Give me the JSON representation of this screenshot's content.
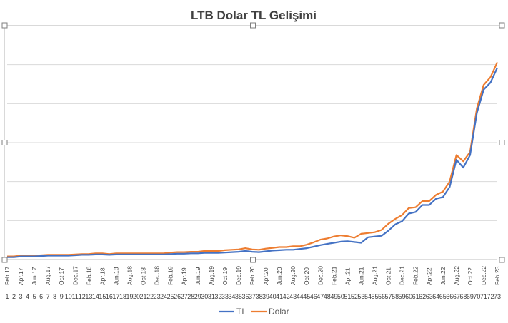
{
  "chart_data": {
    "type": "line",
    "title": "LTB Dolar TL Gelişimi",
    "xlabel": "",
    "ylabel": "",
    "grid": true,
    "legend": "bottom",
    "x_month_labels": [
      "Feb.17",
      "Apr.17",
      "Jun.17",
      "Aug.17",
      "Oct.17",
      "Dec.17",
      "Feb.18",
      "Apr.18",
      "Jun.18",
      "Aug.18",
      "Oct.18",
      "Dec.18",
      "Feb.19",
      "Apr.19",
      "Jun.19",
      "Aug.19",
      "Oct.19",
      "Dec.19",
      "Feb.20",
      "Apr.20",
      "Jun.20",
      "Aug.20",
      "Oct.20",
      "Dec.20",
      "Feb.21",
      "Apr.21",
      "Jun.21",
      "Aug.21",
      "Oct.21",
      "Dec.21",
      "Feb.22",
      "Apr.22",
      "Jun.22",
      "Aug.22",
      "Oct.22",
      "Dec.22",
      "Feb.23"
    ],
    "x": [
      1,
      2,
      3,
      4,
      5,
      6,
      7,
      8,
      9,
      10,
      11,
      12,
      13,
      14,
      15,
      16,
      17,
      18,
      19,
      20,
      21,
      22,
      23,
      24,
      25,
      26,
      27,
      28,
      29,
      30,
      31,
      32,
      33,
      34,
      35,
      36,
      37,
      38,
      39,
      40,
      41,
      42,
      43,
      44,
      45,
      46,
      47,
      48,
      49,
      50,
      51,
      52,
      53,
      54,
      55,
      56,
      57,
      58,
      59,
      60,
      61,
      62,
      63,
      64,
      65,
      66,
      67,
      68,
      69,
      70,
      71,
      72,
      73
    ],
    "series": [
      {
        "name": "TL",
        "color": "#4472C4",
        "values": [
          0.3,
          0.3,
          0.4,
          0.4,
          0.4,
          0.45,
          0.5,
          0.5,
          0.5,
          0.5,
          0.55,
          0.6,
          0.6,
          0.65,
          0.65,
          0.6,
          0.65,
          0.65,
          0.65,
          0.65,
          0.65,
          0.65,
          0.65,
          0.65,
          0.7,
          0.75,
          0.75,
          0.8,
          0.8,
          0.85,
          0.85,
          0.85,
          0.9,
          0.95,
          1.0,
          1.1,
          1.0,
          0.95,
          1.05,
          1.15,
          1.2,
          1.25,
          1.25,
          1.35,
          1.45,
          1.65,
          1.85,
          2.0,
          2.15,
          2.3,
          2.35,
          2.25,
          2.15,
          2.85,
          2.95,
          3.05,
          3.7,
          4.5,
          4.9,
          5.9,
          6.1,
          7.0,
          7.0,
          7.8,
          8.0,
          9.3,
          12.8,
          11.8,
          13.4,
          18.8,
          21.8,
          22.7,
          24.6
        ]
      },
      {
        "name": "Dolar",
        "color": "#ED7D31",
        "values": [
          0.4,
          0.4,
          0.5,
          0.5,
          0.5,
          0.55,
          0.6,
          0.6,
          0.6,
          0.6,
          0.65,
          0.7,
          0.7,
          0.8,
          0.8,
          0.7,
          0.8,
          0.8,
          0.8,
          0.8,
          0.8,
          0.8,
          0.8,
          0.8,
          0.9,
          0.95,
          0.95,
          1.0,
          1.0,
          1.1,
          1.1,
          1.1,
          1.2,
          1.25,
          1.3,
          1.45,
          1.3,
          1.25,
          1.4,
          1.5,
          1.6,
          1.6,
          1.7,
          1.7,
          1.9,
          2.2,
          2.55,
          2.7,
          2.95,
          3.1,
          3.0,
          2.8,
          3.3,
          3.4,
          3.5,
          3.8,
          4.6,
          5.2,
          5.7,
          6.6,
          6.7,
          7.5,
          7.5,
          8.3,
          8.7,
          10.0,
          13.4,
          12.6,
          13.8,
          19.4,
          22.4,
          23.4,
          25.3
        ]
      }
    ],
    "ylim": [
      0,
      30
    ]
  }
}
